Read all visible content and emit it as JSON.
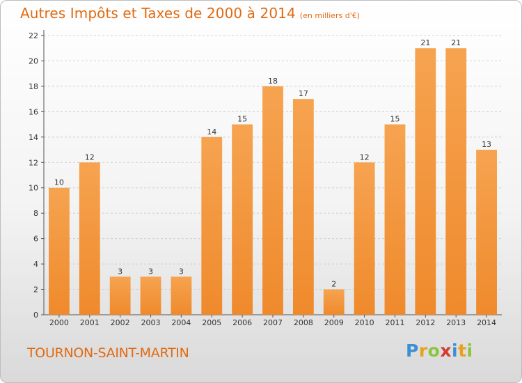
{
  "header": {
    "title": "Autres Impôts et Taxes de 2000 à 2014",
    "unit": "(en milliers d'€)"
  },
  "footer": {
    "commune": "TOURNON-SAINT-MARTIN",
    "logo_letters": [
      "P",
      "r",
      "o",
      "x",
      "i",
      "t",
      "i"
    ],
    "logo_colors": [
      "#3b8fd4",
      "#e8a11f",
      "#8cc43f",
      "#d63a2f",
      "#3b8fd4",
      "#e8a11f",
      "#8cc43f"
    ]
  },
  "colors": {
    "bar": "#ef8a2c",
    "bar_top": "#f6a350",
    "title": "#e06a12",
    "axis": "#555555",
    "grid": "#d0d0d0"
  },
  "chart_data": {
    "type": "bar",
    "title": "Autres Impôts et Taxes de 2000 à 2014",
    "categories": [
      "2000",
      "2001",
      "2002",
      "2003",
      "2004",
      "2005",
      "2006",
      "2007",
      "2008",
      "2009",
      "2010",
      "2011",
      "2012",
      "2013",
      "2014"
    ],
    "values": [
      10,
      12,
      3,
      3,
      3,
      14,
      15,
      18,
      17,
      2,
      12,
      15,
      21,
      21,
      13
    ],
    "yticks": [
      0,
      2,
      4,
      6,
      8,
      10,
      12,
      14,
      16,
      18,
      20,
      22
    ],
    "ylim": [
      0,
      22
    ],
    "grid": true,
    "data_labels": true
  }
}
